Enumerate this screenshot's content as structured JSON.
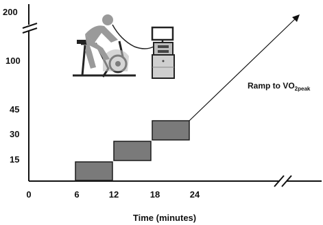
{
  "diagram": {
    "y_ticks": [
      {
        "key": "200",
        "label": "200"
      },
      {
        "key": "100",
        "label": "100"
      },
      {
        "key": "45",
        "label": "45"
      },
      {
        "key": "30",
        "label": "30"
      },
      {
        "key": "15",
        "label": "15"
      }
    ],
    "x_ticks": [
      {
        "key": "0",
        "label": "0"
      },
      {
        "key": "6",
        "label": "6"
      },
      {
        "key": "12",
        "label": "12"
      },
      {
        "key": "18",
        "label": "18"
      },
      {
        "key": "24",
        "label": "24"
      }
    ],
    "x_axis_title": "Time (minutes)",
    "ramp_label": {
      "main": "Ramp to VO",
      "sub": "2peak"
    },
    "stages": [
      {
        "start_min": 6,
        "end_min": 12,
        "level": 15
      },
      {
        "start_min": 12,
        "end_min": 18,
        "level": 30
      },
      {
        "start_min": 18,
        "end_min": 24,
        "level": 45
      }
    ],
    "icons": [
      "cyclist-on-ergometer-icon",
      "metabolic-cart-icon"
    ],
    "colors": {
      "stage_fill": "#7a7a7a",
      "stage_stroke": "#1a1a1a",
      "icon_gray": "#9a9a9a",
      "ink": "#111111"
    }
  }
}
